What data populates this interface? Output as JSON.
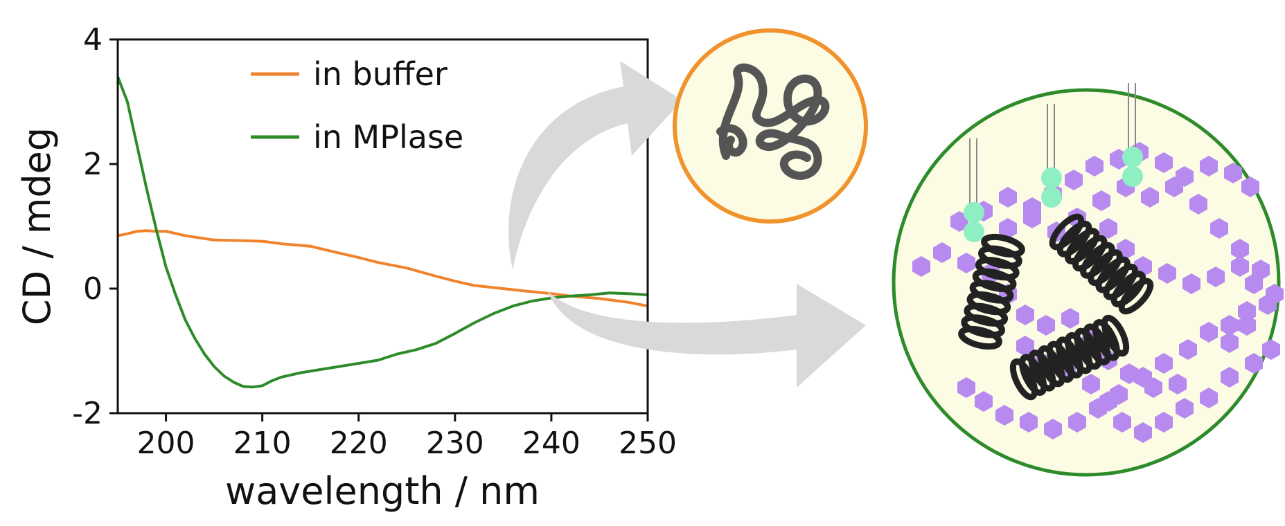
{
  "chart_data": {
    "type": "line",
    "xlabel": "wavelength / nm",
    "ylabel": "CD / mdeg",
    "xlim": [
      195,
      250
    ],
    "ylim": [
      -2,
      4
    ],
    "xticks": [
      200,
      210,
      220,
      230,
      240,
      250
    ],
    "xtick_labels": [
      "200",
      "210",
      "220",
      "230",
      "240",
      "250"
    ],
    "yticks": [
      -2,
      0,
      2,
      4
    ],
    "ytick_labels": [
      "-2",
      "0",
      "2",
      "4"
    ],
    "grid": false,
    "legend_position": "top-center",
    "series": [
      {
        "name": "in buffer",
        "color": "#f0832c",
        "x": [
          195,
          196,
          197,
          198,
          199,
          200,
          202,
          205,
          208,
          210,
          212,
          215,
          218,
          220,
          222,
          225,
          228,
          230,
          232,
          235,
          238,
          240,
          242,
          245,
          248,
          250
        ],
        "y": [
          0.85,
          0.88,
          0.92,
          0.93,
          0.92,
          0.92,
          0.85,
          0.78,
          0.77,
          0.76,
          0.72,
          0.68,
          0.57,
          0.5,
          0.42,
          0.33,
          0.2,
          0.12,
          0.05,
          0.0,
          -0.05,
          -0.08,
          -0.12,
          -0.16,
          -0.22,
          -0.28
        ]
      },
      {
        "name": "in MPlase",
        "color": "#2e8b2a",
        "x": [
          195,
          196,
          197,
          198,
          199,
          200,
          201,
          202,
          203,
          204,
          205,
          206,
          207,
          208,
          209,
          210,
          211,
          212,
          214,
          216,
          218,
          220,
          222,
          224,
          226,
          228,
          230,
          232,
          234,
          236,
          238,
          240,
          242,
          244,
          246,
          248,
          250
        ],
        "y": [
          3.4,
          3.0,
          2.3,
          1.6,
          0.95,
          0.35,
          -0.1,
          -0.5,
          -0.8,
          -1.05,
          -1.25,
          -1.4,
          -1.5,
          -1.57,
          -1.58,
          -1.56,
          -1.48,
          -1.42,
          -1.35,
          -1.3,
          -1.25,
          -1.2,
          -1.15,
          -1.05,
          -0.98,
          -0.88,
          -0.72,
          -0.55,
          -0.4,
          -0.28,
          -0.2,
          -0.15,
          -0.12,
          -0.1,
          -0.07,
          -0.08,
          -0.1
        ]
      }
    ]
  },
  "scheme": {
    "buffer_fill": "#fcfbe4",
    "buffer_border": "#f0932c",
    "mplase_fill": "#fcfbe4",
    "mplase_border": "#2e8b2a",
    "polymer_color": "#b78af0",
    "headgroup_color": "#8ef0c2",
    "peptide_color": "#222222",
    "arrow_color": "#d9d9d9"
  }
}
